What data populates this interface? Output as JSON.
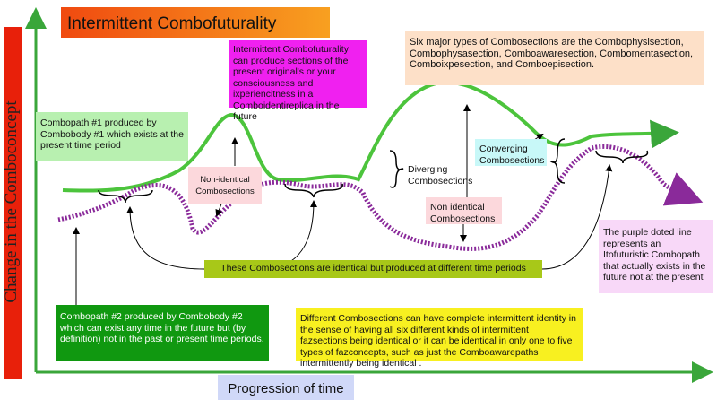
{
  "title": "Intermittent Combofuturality",
  "y_axis_label": "Change in the Comboconcept",
  "x_axis_label": "Progression of time",
  "boxes": {
    "present_consciousness": "Intermittent Combofuturality can produce sections of the present original's or your consciousness and ixperiencitness in a Comboidentireplica in the future",
    "six_types": "Six major types of Combosections are the Combophysisection, Combophysasection, Comboawaresection, Combomentasection, Comboixpesection, and Comboepisection.",
    "combopath_1": "Combopath #1 produced by Combobody #1 which exists at the present time period",
    "non_identical_left": "Non-identical Combosections",
    "diverging": "Diverging Combosections",
    "converging": "Converging Combosections",
    "non_identical_right": "Non identical Combosections",
    "identical": "These Combosections are identical but produced at different time periods",
    "purple_line": "The purple doted line represents an Itofuturistic Combopath that actually exists in the future not at the present",
    "combopath_2": "Combopath #2 produced by Combobody #2 which can exist any time in the future but (by definition) not in the past or present time periods.",
    "intermittent_identity": "Different Combosections can have complete intermittent identity in the sense of having all six different kinds of intermittent fazsections being identical or it can be identical in only one to five types of fazconcepts, such as just the Comboawarepaths intermittently being identical ."
  }
}
